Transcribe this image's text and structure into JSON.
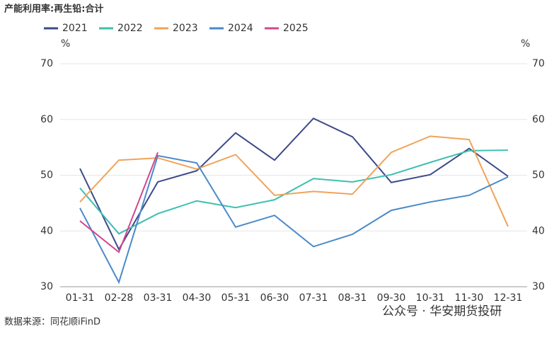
{
  "chart_data": {
    "type": "line",
    "title": "产能利用率:再生铅:合计",
    "y_label": "%",
    "y2_label": "%",
    "categories": [
      "01-31",
      "02-28",
      "03-31",
      "04-30",
      "05-31",
      "06-30",
      "07-31",
      "08-31",
      "09-30",
      "10-31",
      "11-30",
      "12-31"
    ],
    "series": [
      {
        "name": "2021",
        "color": "#3d4a8a",
        "values": [
          51.2,
          36.7,
          48.8,
          50.8,
          57.6,
          52.7,
          60.2,
          56.9,
          48.7,
          50.1,
          54.8,
          49.8
        ]
      },
      {
        "name": "2022",
        "color": "#3dbfb0",
        "values": [
          47.7,
          39.5,
          43.1,
          45.4,
          44.2,
          45.6,
          49.4,
          48.8,
          50.1,
          52.3,
          54.4,
          54.5
        ]
      },
      {
        "name": "2023",
        "color": "#f0a35a",
        "values": [
          45.2,
          52.7,
          53.1,
          51.1,
          53.7,
          46.4,
          47.1,
          46.6,
          54.1,
          57.0,
          56.4,
          40.8
        ]
      },
      {
        "name": "2024",
        "color": "#4a8ac8",
        "values": [
          44.1,
          30.8,
          53.5,
          52.2,
          40.7,
          42.8,
          37.2,
          39.4,
          43.7,
          45.2,
          46.4,
          49.7
        ]
      },
      {
        "name": "2025",
        "color": "#d1478f",
        "values": [
          41.8,
          36.2,
          54.1,
          null,
          null,
          null,
          null,
          null,
          null,
          null,
          null,
          null
        ]
      }
    ],
    "ylim": [
      30,
      70
    ],
    "yticks": [
      30,
      40,
      50,
      60,
      70
    ],
    "y2lim": [
      30,
      70
    ],
    "y2ticks": [
      30,
      40,
      50,
      60,
      70
    ],
    "grid": true,
    "source": "数据来源：同花顺iFinD",
    "watermark": "公众号 · 华安期货投研"
  }
}
